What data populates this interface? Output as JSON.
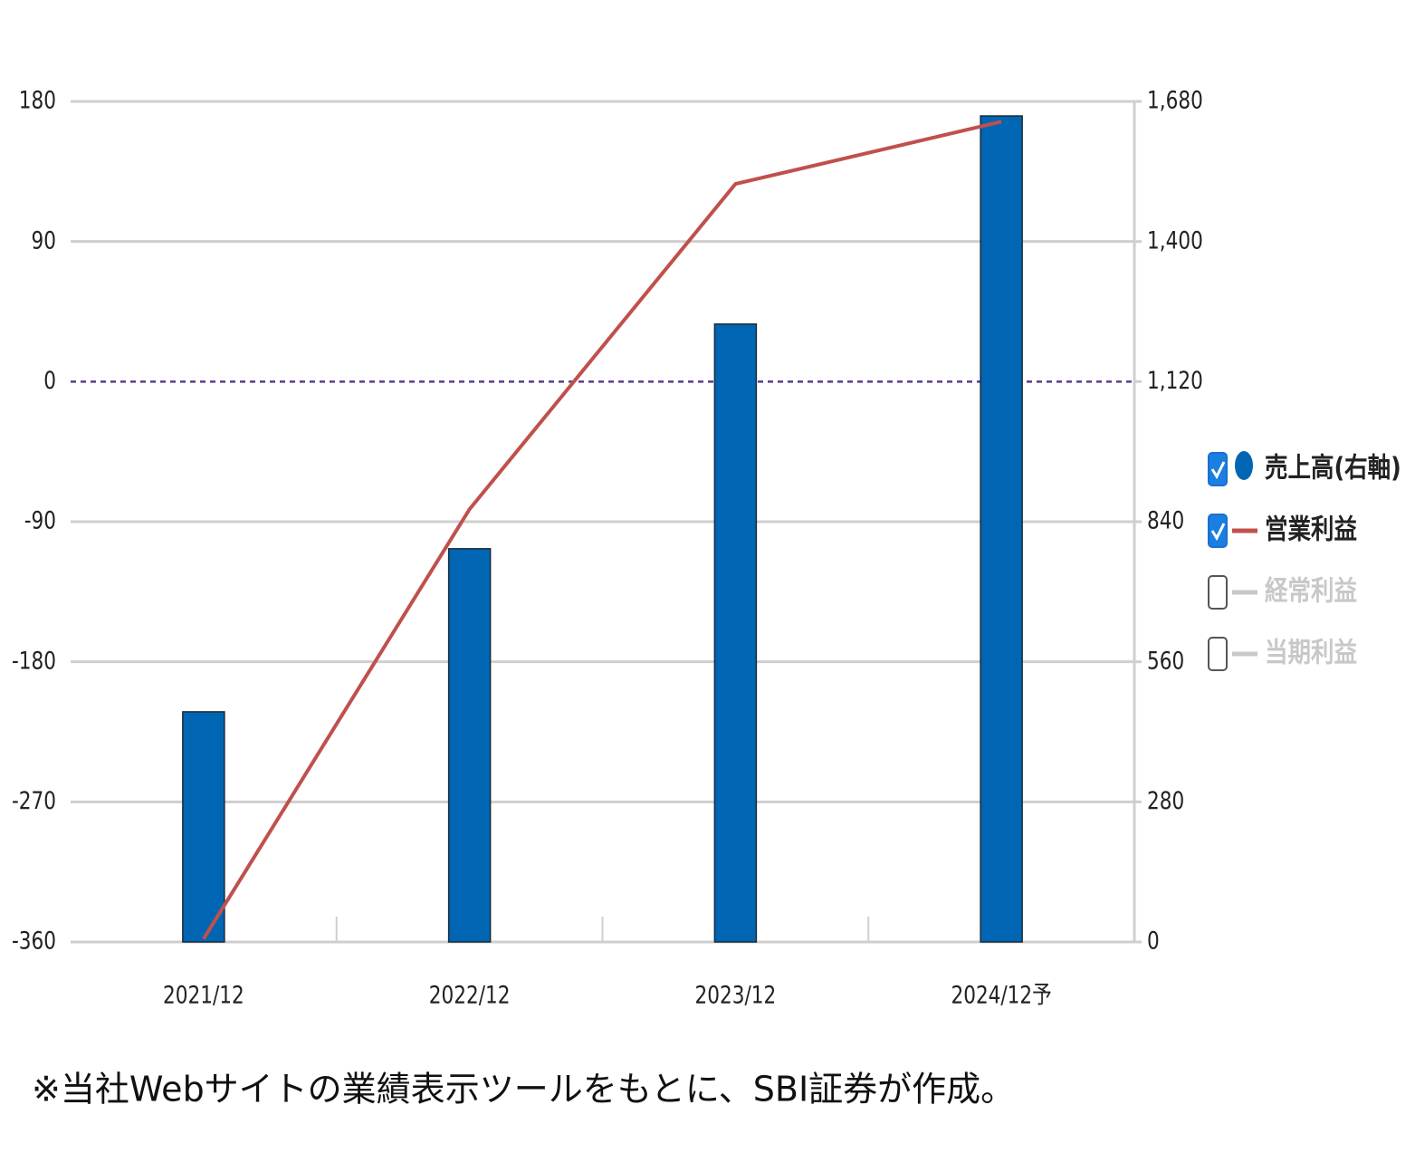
{
  "chart_data": {
    "type": "combo",
    "categories": [
      "2021/12",
      "2022/12",
      "2023/12",
      "2024/12予"
    ],
    "series": [
      {
        "name": "売上高(右軸)",
        "type": "bar",
        "axis": "y2",
        "color": "#0066b3",
        "checked": true,
        "values": [
          460,
          786,
          1235,
          1651
        ]
      },
      {
        "name": "営業利益",
        "type": "line",
        "axis": "y",
        "color": "#c0504d",
        "checked": true,
        "values": [
          -358,
          -82,
          127,
          167
        ]
      },
      {
        "name": "経常利益",
        "type": "line",
        "axis": "y",
        "color": "#c8c8c8",
        "checked": false
      },
      {
        "name": "当期利益",
        "type": "line",
        "axis": "y",
        "color": "#c8c8c8",
        "checked": false
      }
    ],
    "ylim": [
      -360,
      180
    ],
    "yticks": [
      -360,
      -270,
      -180,
      -90,
      0,
      90,
      180
    ],
    "y2lim": [
      0,
      1680
    ],
    "y2ticks": [
      0,
      280,
      560,
      840,
      {
        "value": 1120,
        "label": "1,120"
      },
      {
        "value": 1400,
        "label": "1,400"
      },
      {
        "value": 1680,
        "label": "1,680"
      }
    ],
    "grid": true,
    "zero_line": true,
    "legend": "right",
    "note": "※当社Webサイトの業績表示ツールをもとに、SBI証券が作成。"
  }
}
